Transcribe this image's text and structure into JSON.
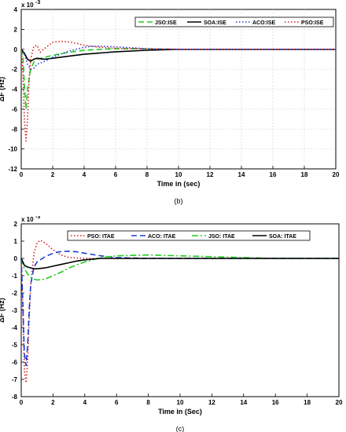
{
  "chart_data": [
    {
      "type": "line",
      "caption": "(b)",
      "title": "",
      "xlabel": "Time in (sec)",
      "ylabel": "ΔF (Hz)",
      "y_exponent": "x 10",
      "y_exponent_power": "-3",
      "xlim": [
        0,
        20
      ],
      "ylim": [
        -12,
        4
      ],
      "xticks": [
        0,
        2,
        4,
        6,
        8,
        10,
        12,
        14,
        16,
        18,
        20
      ],
      "yticks": [
        -12,
        -10,
        -8,
        -6,
        -4,
        -2,
        0,
        2,
        4
      ],
      "grid": true,
      "legend_position": "top-right",
      "series": [
        {
          "name": "JSO:ISE",
          "color": "#22cc22",
          "dash": "dashed",
          "x": [
            0,
            0.1,
            0.2,
            0.3,
            0.4,
            0.6,
            0.8,
            1.0,
            1.5,
            2,
            3,
            4,
            5,
            6,
            8,
            10,
            12,
            20
          ],
          "y": [
            0,
            -0.5,
            -3.5,
            -6.0,
            -4.0,
            -2.0,
            -1.3,
            -1.0,
            -0.8,
            -0.6,
            -0.3,
            -0.1,
            0.0,
            0.05,
            0.05,
            0.0,
            0.0,
            0.0
          ]
        },
        {
          "name": "SOA:ISE",
          "color": "#000000",
          "dash": "solid",
          "x": [
            0,
            0.2,
            0.4,
            0.6,
            0.8,
            1.0,
            1.2,
            1.5,
            2,
            3,
            4,
            6,
            8,
            10,
            12,
            20
          ],
          "y": [
            0,
            -0.4,
            -1.0,
            -1.2,
            -1.0,
            -0.9,
            -0.95,
            -1.0,
            -0.9,
            -0.7,
            -0.5,
            -0.25,
            -0.1,
            0.0,
            0.0,
            0.0
          ]
        },
        {
          "name": "ACO:ISE",
          "color": "#1f3fd6",
          "dash": "dotted",
          "x": [
            0,
            0.2,
            0.4,
            0.6,
            0.8,
            1.0,
            1.5,
            2,
            3,
            4,
            4.5,
            5,
            6,
            7,
            8,
            10,
            12,
            20
          ],
          "y": [
            0,
            -0.5,
            -1.5,
            -2.0,
            -1.9,
            -1.5,
            -1.2,
            -0.8,
            -0.2,
            0.2,
            0.3,
            0.3,
            0.25,
            0.15,
            0.05,
            0.0,
            0.0,
            0.0
          ]
        },
        {
          "name": "PSO:ISE",
          "color": "#d42020",
          "dash": "dotted",
          "x": [
            0,
            0.1,
            0.2,
            0.3,
            0.4,
            0.5,
            0.6,
            0.8,
            1.0,
            1.2,
            1.5,
            2,
            2.5,
            3,
            3.5,
            4,
            5,
            6,
            8,
            10,
            12,
            20
          ],
          "y": [
            0,
            -2.0,
            -7.0,
            -9.2,
            -7.0,
            -3.0,
            -1.0,
            0.3,
            0.4,
            -0.3,
            0.1,
            0.7,
            0.8,
            0.75,
            0.6,
            0.4,
            0.2,
            0.1,
            0.05,
            0.0,
            0.0,
            0.0
          ]
        }
      ]
    },
    {
      "type": "line",
      "caption": "(c)",
      "title": "",
      "xlabel": "Time in (Sec)",
      "ylabel": "ΔF (Hz)",
      "y_exponent": "x 10",
      "y_exponent_power": "-3",
      "xlim": [
        0,
        20
      ],
      "ylim": [
        -8,
        2
      ],
      "xticks": [
        0,
        2,
        4,
        6,
        8,
        10,
        12,
        14,
        16,
        18,
        20
      ],
      "yticks": [
        -8,
        -7,
        -6,
        -5,
        -4,
        -3,
        -2,
        -1,
        0,
        1,
        2
      ],
      "grid": false,
      "legend_position": "top",
      "series": [
        {
          "name": "PSO: ITAE",
          "color": "#d42020",
          "dash": "dotted",
          "x": [
            0,
            0.1,
            0.2,
            0.3,
            0.4,
            0.5,
            0.6,
            0.8,
            1.0,
            1.2,
            1.5,
            2,
            2.5,
            3,
            4,
            5,
            6,
            8,
            10,
            20
          ],
          "y": [
            0,
            -3.0,
            -6.5,
            -7.2,
            -6.0,
            -3.5,
            -1.5,
            0.3,
            0.9,
            1.05,
            0.9,
            0.5,
            0.2,
            0.05,
            0.0,
            0.0,
            0.0,
            0.0,
            0.0,
            0.0
          ]
        },
        {
          "name": "ACO: ITAE",
          "color": "#1f3fd6",
          "dash": "dashed",
          "x": [
            0,
            0.1,
            0.2,
            0.3,
            0.4,
            0.5,
            0.6,
            0.8,
            1.0,
            1.5,
            2,
            2.5,
            3,
            3.5,
            4,
            5,
            6,
            8,
            10,
            20
          ],
          "y": [
            0,
            -2.5,
            -5.5,
            -6.2,
            -5.0,
            -3.0,
            -1.5,
            -0.5,
            -0.2,
            0.1,
            0.3,
            0.4,
            0.42,
            0.38,
            0.3,
            0.15,
            0.05,
            0.0,
            0.0,
            0.0
          ]
        },
        {
          "name": "JSO: ITAE",
          "color": "#22cc22",
          "dash": "dashdot",
          "x": [
            0,
            0.2,
            0.4,
            0.6,
            0.8,
            1.0,
            1.5,
            2,
            2.5,
            3,
            4,
            5,
            6,
            8,
            10,
            12,
            14,
            16,
            20
          ],
          "y": [
            0,
            -0.6,
            -0.9,
            -1.1,
            -1.2,
            -1.25,
            -1.2,
            -1.0,
            -0.8,
            -0.55,
            -0.2,
            0.05,
            0.15,
            0.2,
            0.15,
            0.1,
            0.05,
            0.0,
            0.0
          ]
        },
        {
          "name": "SOA: ITAE",
          "color": "#000000",
          "dash": "solid",
          "x": [
            0,
            0.2,
            0.4,
            0.6,
            0.8,
            1.0,
            1.5,
            2,
            2.5,
            3,
            3.5,
            4,
            5,
            6,
            8,
            20
          ],
          "y": [
            0,
            -0.4,
            -0.5,
            -0.55,
            -0.6,
            -0.6,
            -0.55,
            -0.45,
            -0.35,
            -0.25,
            -0.15,
            -0.08,
            0.0,
            0.0,
            0.0,
            0.0
          ]
        }
      ]
    }
  ]
}
